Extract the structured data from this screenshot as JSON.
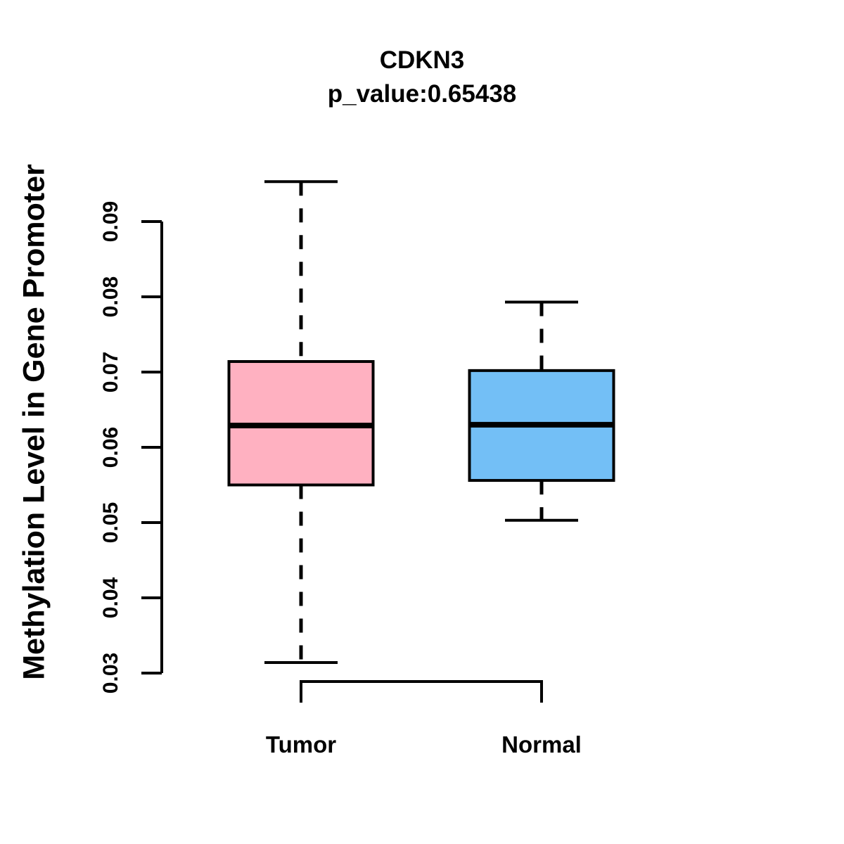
{
  "chart_data": {
    "type": "boxplot",
    "title": "CDKN3",
    "subtitle": "p_value:0.65438",
    "gene": "CDKN3",
    "p_value": 0.65438,
    "ylabel": "Methylation Level in Gene Promoter",
    "xlabel": "",
    "categories": [
      "Tumor",
      "Normal"
    ],
    "series": [
      {
        "name": "Tumor",
        "fill_color": "#FFB1C1",
        "border_color": "#000000",
        "whisker_low": 0.0314,
        "q1": 0.055,
        "median": 0.0629,
        "q3": 0.0714,
        "whisker_high": 0.0953
      },
      {
        "name": "Normal",
        "fill_color": "#73BFF6",
        "border_color": "#000000",
        "whisker_low": 0.0503,
        "q1": 0.0556,
        "median": 0.063,
        "q3": 0.0702,
        "whisker_high": 0.0793
      }
    ],
    "yticks": [
      "0.03",
      "0.04",
      "0.05",
      "0.06",
      "0.07",
      "0.08",
      "0.09"
    ],
    "ylim": [
      0.03,
      0.09
    ],
    "grid": false,
    "legend": "none",
    "whisker_style": "dashed",
    "orientation": "vertical",
    "background_color": "#ffffff",
    "text_color": "#000000"
  }
}
